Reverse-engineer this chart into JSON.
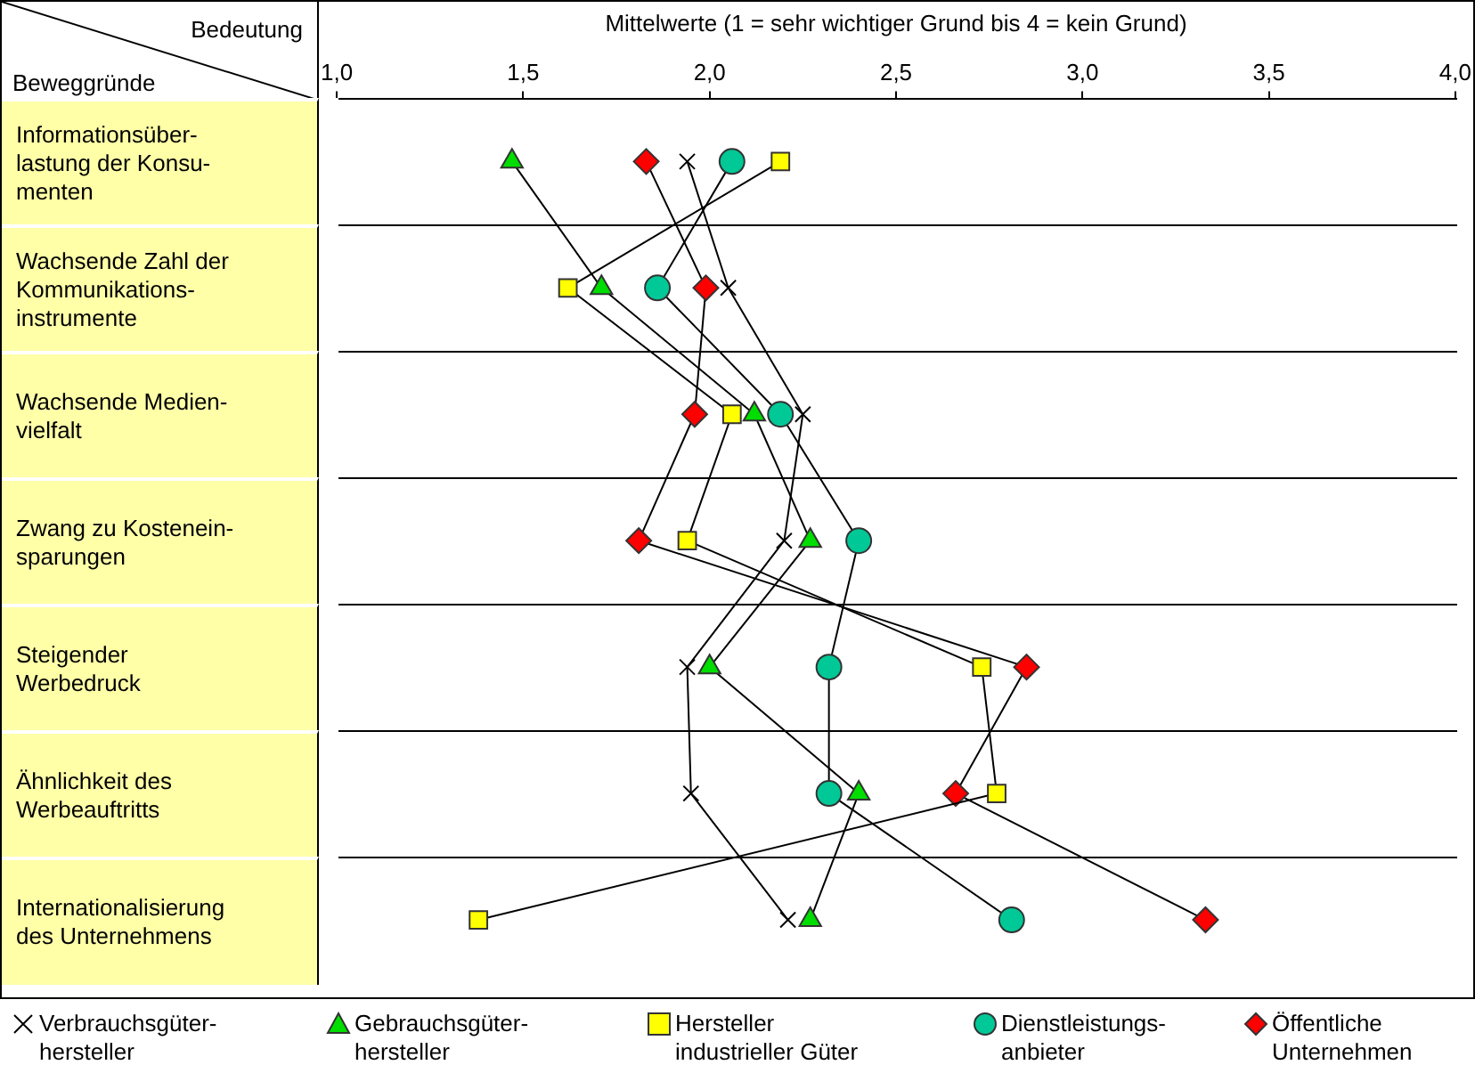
{
  "chart_data": {
    "type": "line",
    "xlabel": "Mittelwerte (1 = sehr wichtiger Grund bis 4 = kein Grund)",
    "ylabel": "Beweggründe",
    "annotations": [
      "Bedeutung"
    ],
    "categories": [
      "Informationsüber-lastung der Konsu-menten",
      "Wachsende Zahl der Kommunikations-instrumente",
      "Wachsende Medien-vielfalt",
      "Zwang zu Kostenein-sparungen",
      "Steigender Werbedruck",
      "Ähnlichkeit des Werbeauftritts",
      "Internationalisierung des Unternehmens"
    ],
    "xlim": [
      1,
      4
    ],
    "xticks": [
      {
        "value": 1,
        "label": "1,0"
      },
      {
        "value": 1.5,
        "label": "1,5"
      },
      {
        "value": 2,
        "label": "2,0"
      },
      {
        "value": 2.5,
        "label": "2,5"
      },
      {
        "value": 3,
        "label": "3,0"
      },
      {
        "value": 3.5,
        "label": "3,5"
      },
      {
        "value": 4,
        "label": "4,0"
      }
    ],
    "legend": "bottom",
    "line_style": "solid",
    "orientation": "horizontal",
    "series": [
      {
        "name": "Verbrauchsgüter-hersteller",
        "color": "#000000",
        "marker": "cross",
        "values": [
          1.94,
          2.05,
          2.25,
          2.2,
          1.94,
          1.95,
          2.21
        ]
      },
      {
        "name": "Gebrauchsgüter-hersteller",
        "color": "#00dd00",
        "marker": "triangle",
        "values": [
          1.47,
          1.71,
          2.12,
          2.27,
          2.0,
          2.4,
          2.27
        ]
      },
      {
        "name": "Hersteller industrieller Güter",
        "color": "#ffff00",
        "marker": "square",
        "values": [
          2.19,
          1.62,
          2.06,
          1.94,
          2.73,
          2.77,
          1.38
        ]
      },
      {
        "name": "Dienstleistungs-anbieter",
        "color": "#00c896",
        "marker": "circle",
        "values": [
          2.06,
          1.86,
          2.19,
          2.4,
          2.32,
          2.32,
          2.81
        ]
      },
      {
        "name": "Öffentliche Unternehmen",
        "color": "#ff0000",
        "marker": "diamond",
        "values": [
          1.83,
          1.99,
          1.96,
          1.81,
          2.85,
          2.66,
          3.33
        ]
      }
    ]
  }
}
